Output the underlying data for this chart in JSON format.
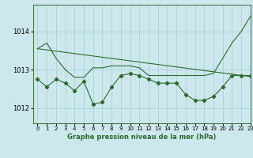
{
  "title": "Graphe pression niveau de la mer (hPa)",
  "bg_color": "#cce8ec",
  "grid_color": "#aad4d8",
  "line_color": "#2d6a2d",
  "xlim": [
    -0.5,
    23
  ],
  "ylim": [
    1011.6,
    1014.7
  ],
  "yticks": [
    1012,
    1013,
    1014
  ],
  "xticks": [
    0,
    1,
    2,
    3,
    4,
    5,
    6,
    7,
    8,
    9,
    10,
    11,
    12,
    13,
    14,
    15,
    16,
    17,
    18,
    19,
    20,
    21,
    22,
    23
  ],
  "zigzag_x": [
    0,
    1,
    2,
    3,
    4,
    5,
    6,
    7,
    8,
    9,
    10,
    11,
    12,
    13,
    14,
    15,
    16,
    17,
    18,
    19,
    20,
    21,
    22,
    23
  ],
  "zigzag_y": [
    1012.75,
    1012.55,
    1012.75,
    1012.65,
    1012.45,
    1012.7,
    1012.1,
    1012.15,
    1012.55,
    1012.85,
    1012.9,
    1012.85,
    1012.75,
    1012.65,
    1012.65,
    1012.65,
    1012.35,
    1012.2,
    1012.2,
    1012.3,
    1012.55,
    1012.85,
    1012.85,
    1012.85
  ],
  "line1_x": [
    0,
    23
  ],
  "line1_y": [
    1013.55,
    1012.82
  ],
  "line2_x": [
    0,
    1,
    2,
    3,
    4,
    5,
    6,
    7,
    8,
    9,
    10,
    11,
    12,
    13,
    14,
    15,
    16,
    17,
    18,
    19,
    20,
    21,
    22,
    23
  ],
  "line2_y": [
    1013.55,
    1013.7,
    1013.3,
    1013.0,
    1012.8,
    1012.8,
    1013.05,
    1013.05,
    1013.1,
    1013.1,
    1013.1,
    1013.05,
    1012.85,
    1012.85,
    1012.85,
    1012.85,
    1012.85,
    1012.85,
    1012.85,
    1012.9,
    1013.3,
    1013.7,
    1014.0,
    1014.4
  ]
}
